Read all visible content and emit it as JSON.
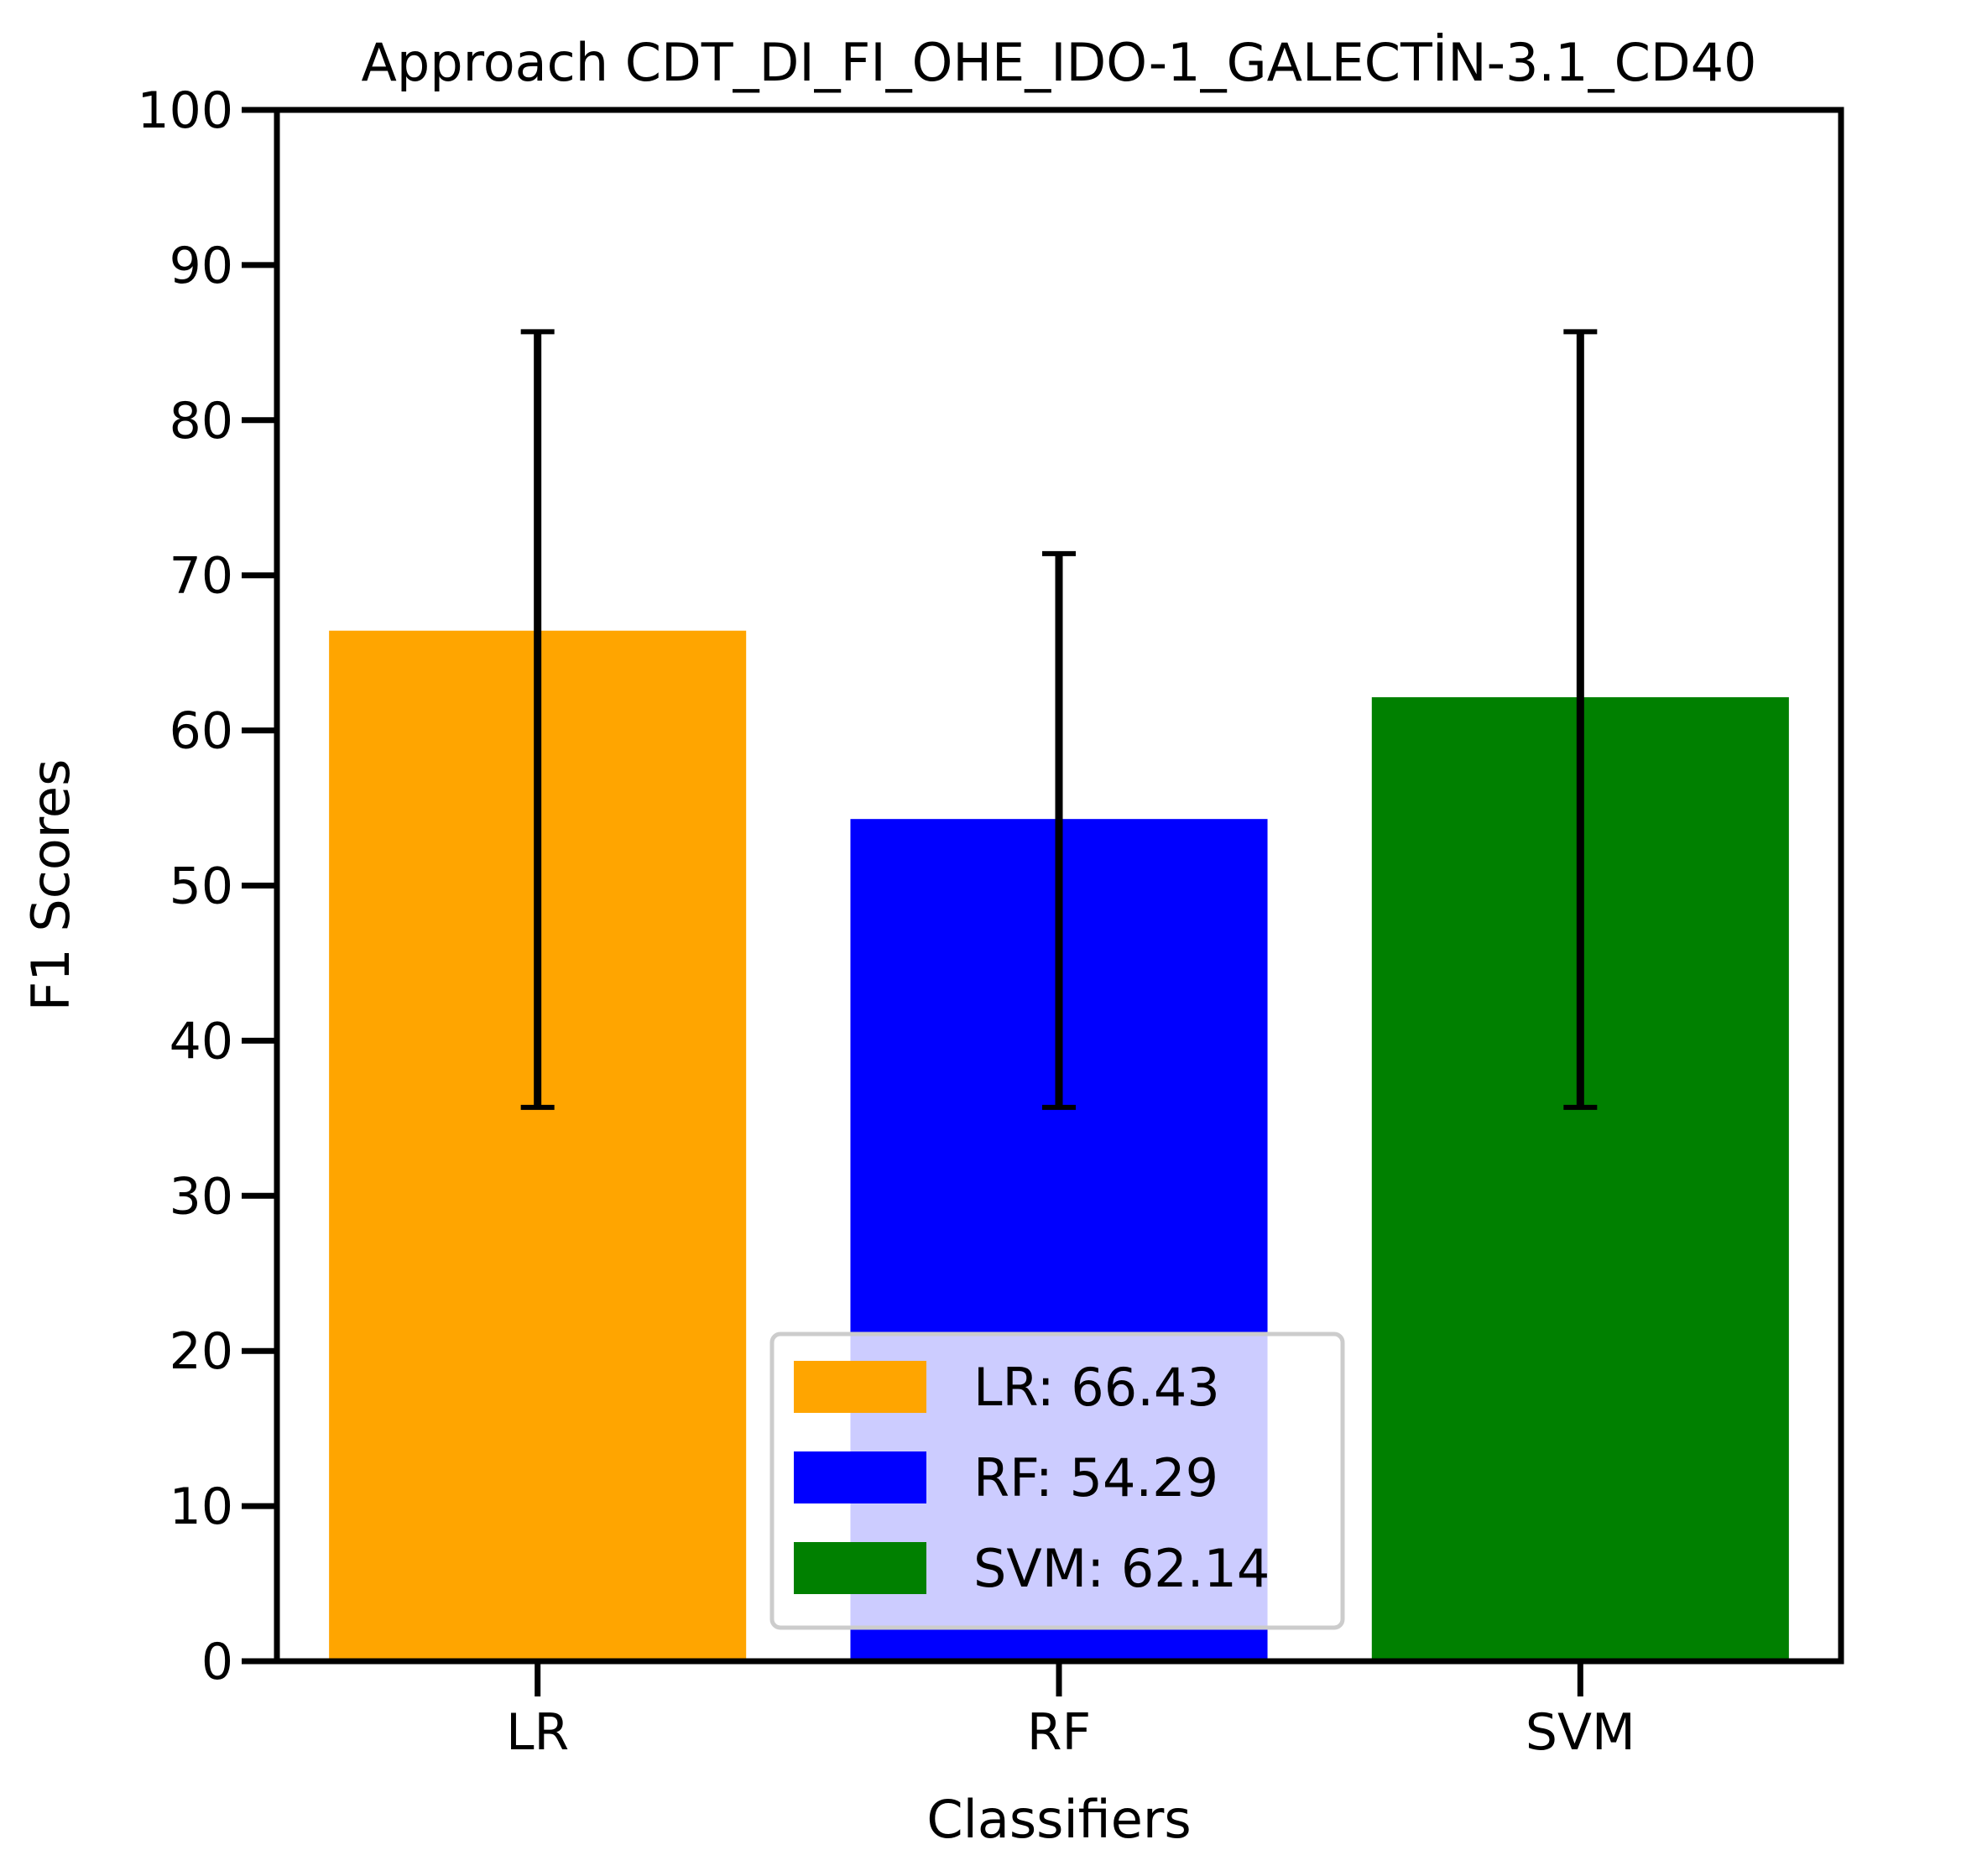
{
  "chart_data": {
    "type": "bar",
    "title": "Approach CDT_DI_FI_OHE_IDO-1_GALECTİN-3.1_CD40",
    "xlabel": "Classifiers",
    "ylabel": "F1 Scores",
    "categories": [
      "LR",
      "RF",
      "SVM"
    ],
    "values": [
      66.43,
      54.29,
      62.14
    ],
    "errors": [
      {
        "low": 35.7,
        "high": 85.7
      },
      {
        "low": 35.7,
        "high": 71.4
      },
      {
        "low": 35.7,
        "high": 85.7
      }
    ],
    "colors": [
      "#ffa500",
      "#0000ff",
      "#008000"
    ],
    "ylim": [
      0,
      100
    ],
    "yticks": [
      0,
      10,
      20,
      30,
      40,
      50,
      60,
      70,
      80,
      90,
      100
    ],
    "grid": false,
    "legend": {
      "position": "lower-center",
      "entries": [
        "LR: 66.43",
        "RF: 54.29",
        "SVM: 62.14"
      ]
    }
  }
}
